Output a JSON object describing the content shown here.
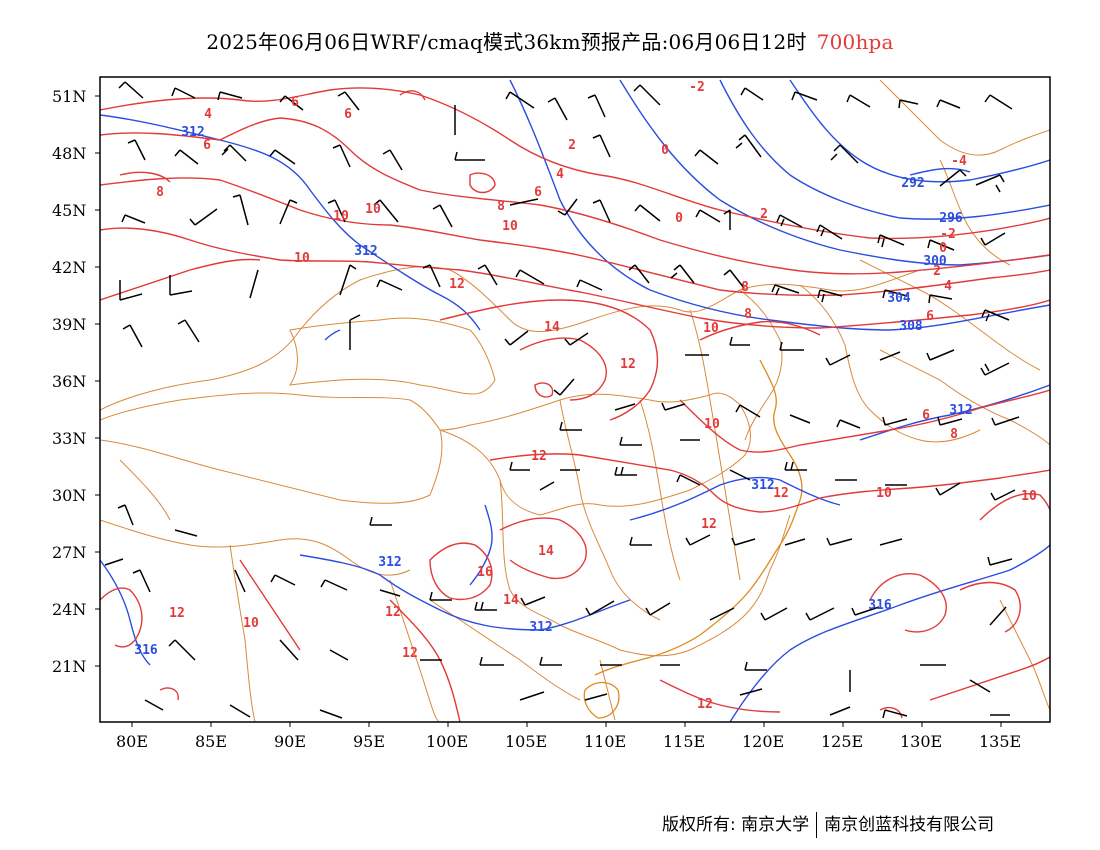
{
  "title": {
    "main": "2025年06月06日WRF/cmaq模式36km预报产品:06月06日12时",
    "level": "700hpa"
  },
  "map": {
    "lat_labels": [
      "51N",
      "48N",
      "45N",
      "42N",
      "39N",
      "36N",
      "33N",
      "30N",
      "27N",
      "24N",
      "21N"
    ],
    "lon_labels": [
      "80E",
      "85E",
      "90E",
      "95E",
      "100E",
      "105E",
      "110E",
      "115E",
      "120E",
      "125E",
      "130E",
      "135E"
    ],
    "temperature_labels": [
      "-4",
      "-2",
      "0",
      "2",
      "4",
      "6",
      "8",
      "10",
      "12",
      "14",
      "16",
      "-2",
      "0",
      "2",
      "4",
      "6",
      "8",
      "10",
      "12",
      "14",
      "-4",
      "-2",
      "0",
      "2",
      "4",
      "6",
      "8",
      "10",
      "12",
      "6",
      "8",
      "10",
      "12",
      "14",
      "16",
      "12",
      "10",
      "12",
      "10",
      "12",
      "10",
      "8",
      "6",
      "4"
    ],
    "height_labels": [
      "312",
      "312",
      "312",
      "312",
      "316",
      "292",
      "296",
      "300",
      "304",
      "308",
      "312",
      "316"
    ],
    "colors": {
      "temperature_contour": "#e23a3a",
      "geopotential_contour": "#2b4de0",
      "boundary": "#d98a3a",
      "wind_barb": "#000000"
    }
  },
  "footer": {
    "copyright": "版权所有: 南京大学",
    "company": "南京创蓝科技有限公司"
  }
}
